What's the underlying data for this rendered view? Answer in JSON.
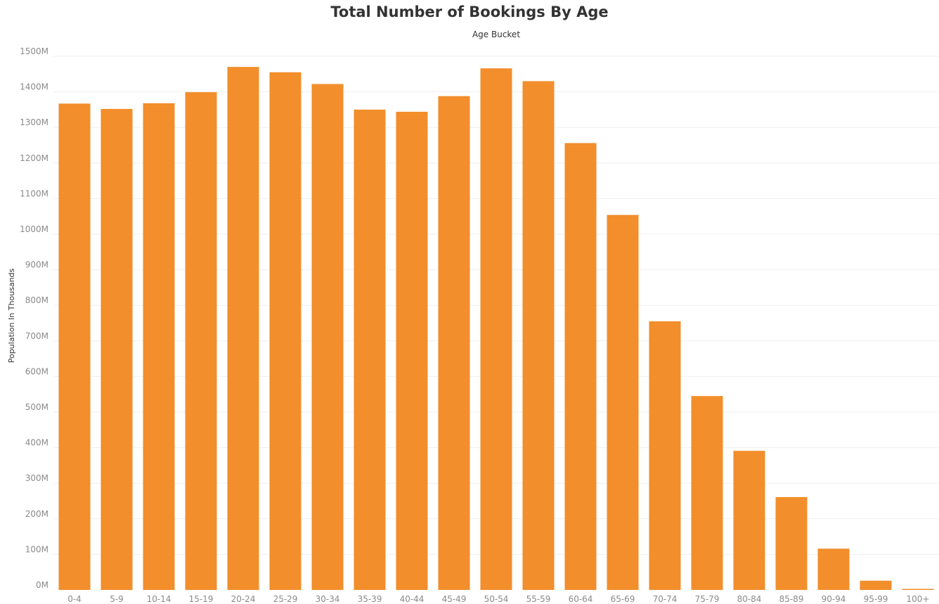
{
  "chart_data": {
    "type": "bar",
    "title": "Total Number of Bookings By Age",
    "xlabel": "Age Bucket",
    "ylabel": "Population In Thousands",
    "categories": [
      "0-4",
      "5-9",
      "10-14",
      "15-19",
      "20-24",
      "25-29",
      "30-34",
      "35-39",
      "40-44",
      "45-49",
      "50-54",
      "55-59",
      "60-64",
      "65-69",
      "70-74",
      "75-79",
      "80-84",
      "85-89",
      "90-94",
      "95-99",
      "100+"
    ],
    "values": [
      1367,
      1352,
      1368,
      1399,
      1470,
      1455,
      1422,
      1350,
      1344,
      1388,
      1466,
      1430,
      1256,
      1054,
      755,
      545,
      391,
      261,
      116,
      26,
      3
    ],
    "unit_suffix": "M",
    "ylim": [
      0,
      1500
    ],
    "ytick_step": 100,
    "grid": true,
    "bar_color": "#F28E2B"
  }
}
